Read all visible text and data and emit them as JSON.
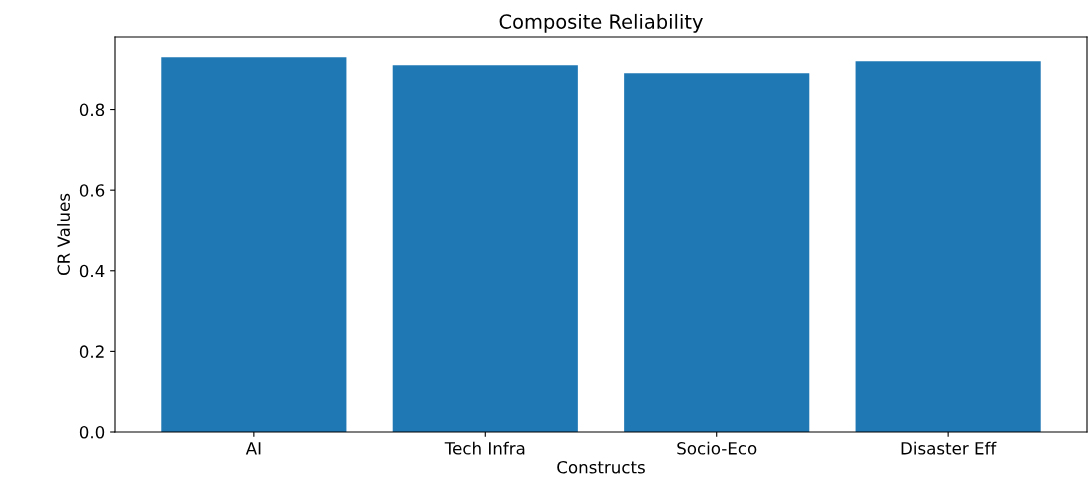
{
  "chart_data": {
    "type": "bar",
    "title": "Composite Reliability",
    "xlabel": "Constructs",
    "ylabel": "CR Values",
    "categories": [
      "AI",
      "Tech Infra",
      "Socio-Eco",
      "Disaster Eff"
    ],
    "values": [
      0.93,
      0.91,
      0.89,
      0.92
    ],
    "color": "#1f77b4",
    "ylim": [
      0,
      0.98
    ],
    "yticks": [
      {
        "value": 0,
        "label": "0.0"
      },
      0.2,
      0.4,
      0.6,
      0.8
    ],
    "grid": false
  }
}
